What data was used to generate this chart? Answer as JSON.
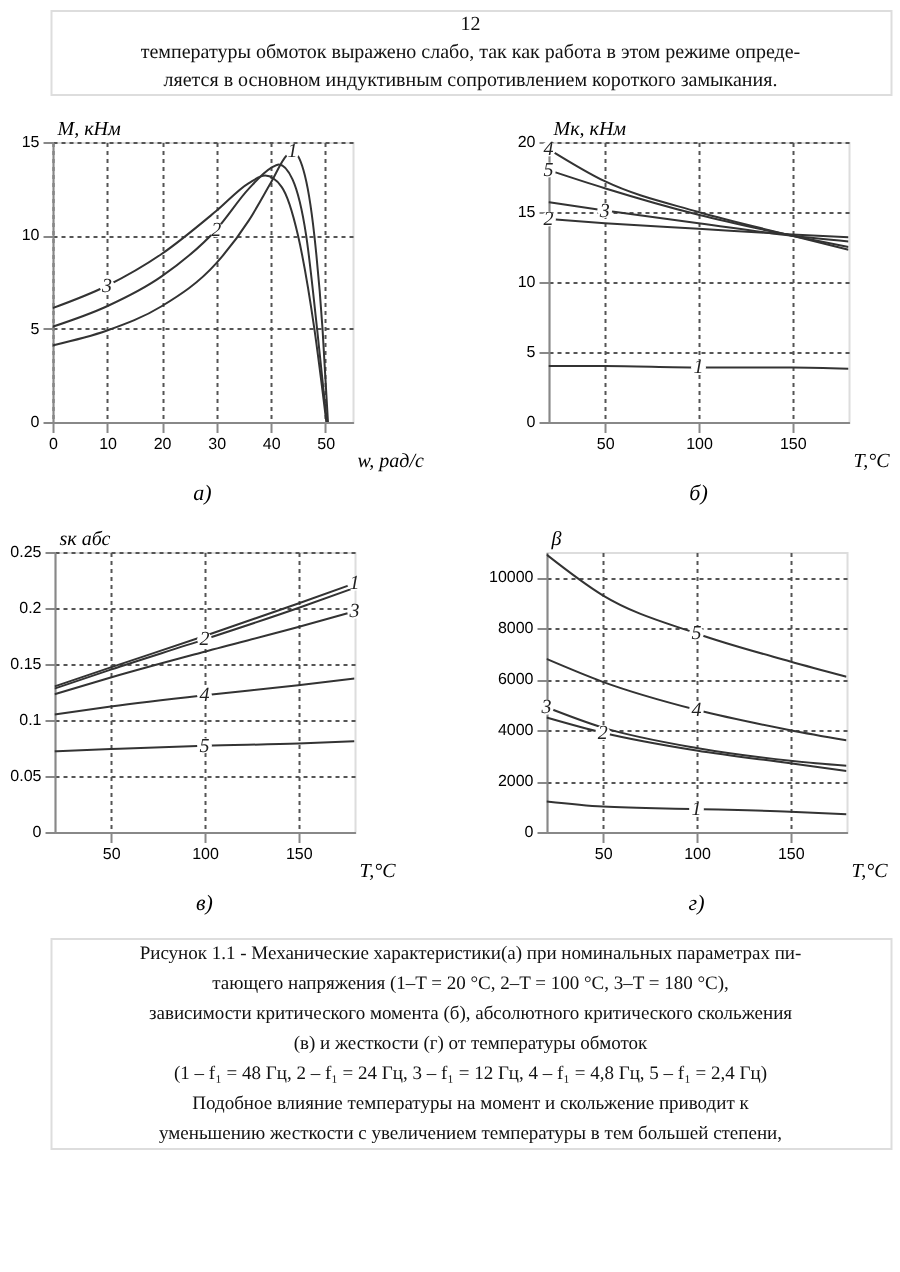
{
  "chart_data": [
    {
      "type": "line",
      "title": "а)",
      "xlabel": "w, рад/с",
      "ylabel": "M, кНм",
      "xlim": [
        0,
        55
      ],
      "ylim": [
        0,
        15
      ],
      "xticks": [
        0,
        10,
        20,
        30,
        40,
        50
      ],
      "yticks": [
        0,
        5,
        10,
        15
      ],
      "grid": true,
      "line_style": "solid",
      "series": [
        {
          "color": "#333333",
          "x": [
            0,
            10,
            20,
            30,
            36,
            40,
            43,
            44,
            46,
            48,
            49.5,
            50.5
          ],
          "values": [
            4.1,
            4.9,
            6.2,
            8.5,
            10.8,
            12.8,
            14.3,
            14.5,
            13.5,
            10,
            5,
            0
          ]
        },
        {
          "color": "#333333",
          "x": [
            0,
            10,
            20,
            30,
            36,
            40,
            41.5,
            44,
            46.5,
            48.5,
            50.3
          ],
          "values": [
            5.1,
            6.2,
            7.8,
            10.3,
            12.5,
            13.6,
            13.8,
            13,
            10,
            5,
            0
          ]
        },
        {
          "color": "#333333",
          "x": [
            0,
            10,
            20,
            30,
            36,
            39,
            42,
            45,
            48,
            50.2
          ],
          "values": [
            6.1,
            7.3,
            9,
            11.3,
            12.8,
            13.2,
            12.6,
            10,
            5,
            0
          ]
        }
      ],
      "annotations": [
        "12",
        "температуры обмоток выражено слабо, так как работа в этом режиме опреде-",
        "ляется в основном индуктивным сопротивлением короткого замыкания.",
        {
          "text": "1",
          "x": 44,
          "y": 14.5
        },
        {
          "text": "2",
          "x": 30,
          "y": 10.3
        },
        {
          "text": "3",
          "x": 10,
          "y": 7.3
        }
      ]
    },
    {
      "type": "line",
      "title": "б)",
      "xlabel": "T,°C",
      "ylabel": "Mк, кНм",
      "xlim": [
        20,
        180
      ],
      "ylim": [
        0,
        20
      ],
      "xticks": [
        50,
        100,
        150
      ],
      "yticks": [
        0,
        5,
        10,
        15,
        20
      ],
      "grid": true,
      "line_style": "solid",
      "x": [
        20,
        50,
        100,
        150,
        180
      ],
      "series": [
        {
          "color": "#333333",
          "values": [
            4.0,
            4.0,
            3.9,
            3.9,
            3.8
          ]
        },
        {
          "color": "#333333",
          "values": [
            14.5,
            14.2,
            13.8,
            13.4,
            13.2
          ]
        },
        {
          "color": "#333333",
          "values": [
            15.7,
            15.1,
            14.2,
            13.3,
            12.9
          ]
        },
        {
          "color": "#333333",
          "values": [
            19.5,
            17.2,
            15,
            13.3,
            12.3
          ]
        },
        {
          "color": "#333333",
          "values": [
            18,
            16.7,
            14.8,
            13.3,
            12.5
          ]
        }
      ],
      "annotations": [
        {
          "text": "1",
          "x": 100,
          "y": 3.9
        },
        {
          "text": "2",
          "x": 20,
          "y": 14.5
        },
        {
          "text": "3",
          "x": 50,
          "y": 15.1
        },
        {
          "text": "4",
          "x": 20,
          "y": 19.5
        },
        {
          "text": "5",
          "x": 20,
          "y": 18
        }
      ]
    },
    {
      "type": "line",
      "title": "в)",
      "xlabel": "T,°C",
      "ylabel": "sк абс",
      "xlim": [
        20,
        180
      ],
      "ylim": [
        0,
        0.25
      ],
      "xticks": [
        50,
        100,
        150
      ],
      "yticks": [
        0,
        0.05,
        0.1,
        0.15,
        0.2,
        0.25
      ],
      "grid": true,
      "line_style": "solid",
      "x": [
        20,
        50,
        100,
        150,
        180
      ],
      "series": [
        {
          "color": "#333333",
          "values": [
            0.13,
            0.147,
            0.175,
            0.204,
            0.222
          ]
        },
        {
          "color": "#333333",
          "values": [
            0.128,
            0.145,
            0.172,
            0.2,
            0.218
          ]
        },
        {
          "color": "#333333",
          "values": [
            0.123,
            0.138,
            0.161,
            0.183,
            0.197
          ]
        },
        {
          "color": "#333333",
          "values": [
            0.105,
            0.112,
            0.122,
            0.131,
            0.137
          ]
        },
        {
          "color": "#333333",
          "values": [
            0.072,
            0.074,
            0.077,
            0.079,
            0.081
          ]
        }
      ],
      "annotations": [
        {
          "text": "1",
          "x": 180,
          "y": 0.222
        },
        {
          "text": "2",
          "x": 100,
          "y": 0.172
        },
        {
          "text": "3",
          "x": 180,
          "y": 0.197
        },
        {
          "text": "4",
          "x": 100,
          "y": 0.122
        },
        {
          "text": "5",
          "x": 100,
          "y": 0.077
        }
      ]
    },
    {
      "type": "line",
      "title": "г)",
      "xlabel": "T,°C",
      "ylabel": "β",
      "xlim": [
        20,
        180
      ],
      "ylim": [
        0,
        11000
      ],
      "xticks": [
        50,
        100,
        150
      ],
      "yticks": [
        0,
        2000,
        4000,
        6000,
        8000,
        10000
      ],
      "grid": true,
      "line_style": "solid",
      "x": [
        20,
        50,
        100,
        150,
        180
      ],
      "series": [
        {
          "color": "#333333",
          "values": [
            1200,
            1000,
            900,
            800,
            700
          ]
        },
        {
          "color": "#333333",
          "values": [
            4500,
            3900,
            3200,
            2700,
            2400
          ]
        },
        {
          "color": "#333333",
          "values": [
            4900,
            4100,
            3300,
            2800,
            2600
          ]
        },
        {
          "color": "#333333",
          "values": [
            6800,
            5900,
            4800,
            4000,
            3600
          ]
        },
        {
          "color": "#333333",
          "values": [
            10900,
            9300,
            7800,
            6700,
            6100
          ]
        }
      ],
      "annotations": [
        {
          "text": "1",
          "x": 100,
          "y": 900
        },
        {
          "text": "2",
          "x": 50,
          "y": 3900
        },
        {
          "text": "3",
          "x": 20,
          "y": 4900
        },
        {
          "text": "4",
          "x": 100,
          "y": 4800
        },
        {
          "text": "5",
          "x": 100,
          "y": 7800
        },
        "Рисунок 1.1 - Механические характеристики(а) при номинальных параметрах пи-",
        "тающего напряжения (1–T = 20 °C, 2–T = 100 °C, 3–T = 180 °C),",
        "зависимости критического момента (б), абсолютного критического скольжения",
        "(в) и жесткости (г) от температуры обмоток",
        "(1 – f₁ = 48 Гц, 2 – f₁ = 24 Гц, 3 – f₁ = 12 Гц, 4 – f₁ = 4,8 Гц, 5 – f₁ = 2,4 Гц)",
        "Подобное влияние температуры на момент и скольжение приводит к",
        "уменьшению жесткости с увеличением температуры в тем большей степени,"
      ]
    }
  ]
}
